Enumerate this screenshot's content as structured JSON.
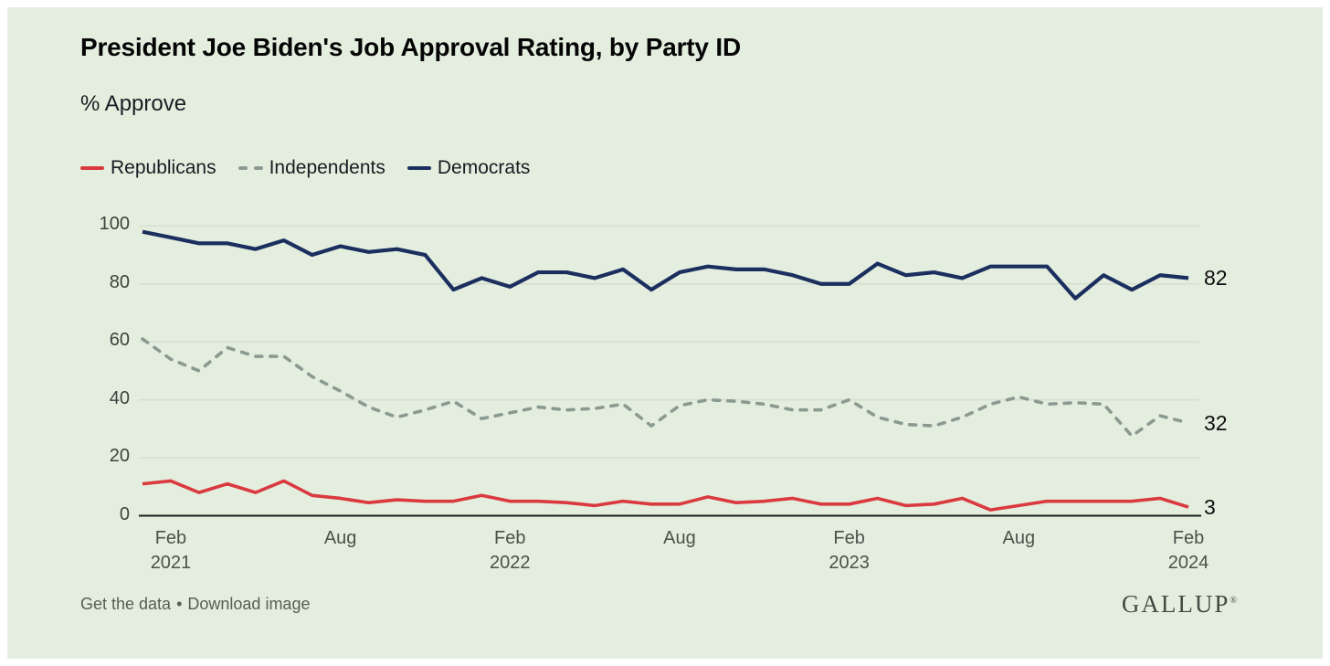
{
  "header": {
    "title": "President Joe Biden's Job Approval Rating, by Party ID",
    "subtitle": "% Approve"
  },
  "legend": [
    {
      "label": "Republicans",
      "color": "#da3a3f",
      "style": "solid"
    },
    {
      "label": "Independents",
      "color": "#8b9a91",
      "style": "dashed"
    },
    {
      "label": "Democrats",
      "color": "#1b2f5f",
      "style": "solid"
    }
  ],
  "chart_data": {
    "type": "line",
    "title": "President Joe Biden's Job Approval Rating, by Party ID",
    "ylabel": "% Approve",
    "ylim": [
      0,
      100
    ],
    "yticks": [
      0,
      20,
      40,
      60,
      80,
      100
    ],
    "grid": "horizontal-light",
    "legend_position": "top-left",
    "x": [
      "Jan 2021",
      "Feb 2021",
      "Mar 2021",
      "Apr 2021",
      "May 2021",
      "Jun 2021",
      "Jul 2021",
      "Aug 2021",
      "Sep 2021",
      "Oct 2021",
      "Nov 2021",
      "Dec 2021",
      "Jan 2022",
      "Feb 2022",
      "Mar 2022",
      "Apr 2022",
      "May 2022",
      "Jun 2022",
      "Jul 2022",
      "Aug 2022",
      "Sep 2022",
      "Oct 2022",
      "Nov 2022",
      "Dec 2022",
      "Jan 2023",
      "Feb 2023",
      "Mar 2023",
      "Apr 2023",
      "May 2023",
      "Jun 2023",
      "Jul 2023",
      "Aug 2023",
      "Sep 2023",
      "Oct 2023",
      "Nov 2023",
      "Dec 2023",
      "Jan 2024",
      "Feb 2024"
    ],
    "xticks": [
      {
        "i": 1,
        "label": "Feb",
        "year": "2021"
      },
      {
        "i": 7,
        "label": "Aug",
        "year": ""
      },
      {
        "i": 13,
        "label": "Feb",
        "year": "2022"
      },
      {
        "i": 19,
        "label": "Aug",
        "year": ""
      },
      {
        "i": 25,
        "label": "Feb",
        "year": "2023"
      },
      {
        "i": 31,
        "label": "Aug",
        "year": ""
      },
      {
        "i": 37,
        "label": "Feb",
        "year": "2024"
      }
    ],
    "series": [
      {
        "name": "Republicans",
        "color": "#da3a3f",
        "dashed": false,
        "end_label": "3",
        "values": [
          11,
          12,
          8,
          11,
          8,
          12,
          7,
          6,
          4.5,
          5.5,
          5,
          5,
          7,
          5,
          5,
          4.5,
          3.5,
          5,
          4,
          4,
          6.5,
          4.5,
          5,
          6,
          4,
          4,
          6,
          3.5,
          4,
          6,
          2,
          3.5,
          5,
          5,
          5,
          5,
          6,
          3
        ]
      },
      {
        "name": "Independents",
        "color": "#8b9a91",
        "dashed": true,
        "end_label": "32",
        "values": [
          61,
          54,
          50,
          58,
          55,
          55,
          48,
          43,
          37.5,
          34,
          36.5,
          39.5,
          33.5,
          35.5,
          37.5,
          36.5,
          37,
          38.5,
          31,
          38,
          40,
          39.5,
          38.5,
          36.5,
          36.5,
          40,
          34,
          31.5,
          31,
          34,
          38.5,
          41,
          38.5,
          39,
          38.5,
          27.5,
          34.5,
          32
        ]
      },
      {
        "name": "Democrats",
        "color": "#1b2f5f",
        "dashed": false,
        "end_label": "82",
        "values": [
          98,
          96,
          94,
          94,
          92,
          95,
          90,
          93,
          91,
          92,
          90,
          78,
          82,
          79,
          84,
          84,
          82,
          85,
          78,
          84,
          86,
          85,
          85,
          83,
          80,
          80,
          87,
          83,
          84,
          82,
          86,
          86,
          86,
          75,
          83,
          78,
          83,
          82
        ]
      }
    ]
  },
  "footer": {
    "links": [
      "Get the data",
      "Download image"
    ],
    "separator": "•"
  },
  "brand": {
    "logo": "GALLUP",
    "registered": "®"
  },
  "colors": {
    "background": "#e4eedf",
    "frame": "#ffffff",
    "gridline": "#d5ddd0",
    "axis": "#1c1c1c",
    "tick_text": "#3c423c",
    "footer_text": "#575d53",
    "logo_text": "#414b42"
  }
}
